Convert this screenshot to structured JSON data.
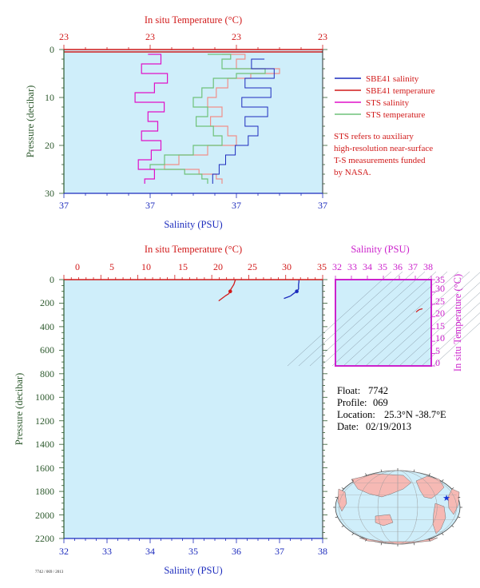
{
  "colors": {
    "plot_bg": "#cfeefa",
    "salinity": "#1c2bbd",
    "temperature": "#d11a1a",
    "sts_salinity": "#e010c8",
    "sts_temperature": "#6fc27a",
    "sts_temperature_red": "#f0908a",
    "ts_axis": "#cc22cc",
    "pressure_axis": "#2e5a2e",
    "land": "#f6b9b4",
    "ocean": "#cfeefa",
    "float_marker": "#1633d6"
  },
  "top_chart": {
    "top_axis_title": "In situ Temperature (°C)",
    "top_tick_labels": [
      "23",
      "23",
      "23",
      "23"
    ],
    "bottom_axis_title": "Salinity (PSU)",
    "bottom_tick_labels": [
      "37",
      "37",
      "37",
      "37"
    ],
    "left_axis_title": "Pressure (decibar)",
    "left_tick_labels": [
      "0",
      "10",
      "20",
      "30"
    ]
  },
  "legend": {
    "items": [
      {
        "label": "SBE41 salinity",
        "color": "#1c2bbd"
      },
      {
        "label": "SBE41 temperature",
        "color": "#d11a1a"
      },
      {
        "label": "STS salinity",
        "color": "#e010c8"
      },
      {
        "label": "STS temperature",
        "color": "#6fc27a"
      }
    ],
    "note_lines": [
      "STS refers to auxiliary",
      "high-resolution near-surface",
      "T-S measurements funded",
      "by NASA."
    ]
  },
  "bottom_chart": {
    "top_axis_title": "In situ Temperature (°C)",
    "top_tick_labels": [
      "0",
      "5",
      "10",
      "15",
      "20",
      "25",
      "30",
      "35"
    ],
    "bottom_axis_title": "Salinity (PSU)",
    "bottom_tick_labels": [
      "32",
      "33",
      "34",
      "35",
      "36",
      "37",
      "38"
    ],
    "left_axis_title": "Pressure (decibar)",
    "left_tick_labels": [
      "0",
      "200",
      "400",
      "600",
      "800",
      "1000",
      "1200",
      "1400",
      "1600",
      "1800",
      "2000",
      "2200"
    ]
  },
  "ts_diagram": {
    "top_axis_title": "Salinity (PSU)",
    "top_tick_labels": [
      "32",
      "33",
      "34",
      "35",
      "36",
      "37",
      "38"
    ],
    "right_axis_title": "In situ Temperature (°C)",
    "right_tick_labels": [
      "0",
      "5",
      "10",
      "15",
      "20",
      "25",
      "30",
      "35"
    ]
  },
  "float_info": {
    "float_label": "Float:",
    "float_value": "7742",
    "profile_label": "Profile:",
    "profile_value": "069",
    "location_label": "Location:",
    "location_value": "25.3°N  -38.7°E",
    "date_label": "Date:",
    "date_value": "02/19/2013"
  },
  "footer_text": "7742 / 069 / 2013",
  "chart_data": [
    {
      "type": "line",
      "title": "",
      "xlabel": "Salinity (PSU) / In situ Temperature (°C)",
      "ylabel": "Pressure (decibar)",
      "ylim": [
        30,
        0
      ],
      "y_inverted": true,
      "grid": false,
      "legend_position": "right",
      "series": [
        {
          "name": "SBE41 salinity",
          "color": "#1c2bbd",
          "pressure": [
            2,
            4,
            6,
            8,
            10,
            12,
            14,
            16,
            18,
            20,
            22,
            24,
            26,
            28
          ],
          "value": [
            37.42,
            37.38,
            37.45,
            37.36,
            37.44,
            37.35,
            37.43,
            37.36,
            37.4,
            37.37,
            37.33,
            37.3,
            37.28,
            37.26
          ]
        },
        {
          "name": "SBE41 temperature",
          "color": "#d11a1a",
          "pressure": [
            0.5
          ],
          "value": [
            23.0
          ]
        },
        {
          "name": "STS salinity",
          "color": "#e010c8",
          "pressure": [
            1,
            3,
            5,
            7,
            9,
            11,
            13,
            15,
            17,
            19,
            21,
            23,
            25,
            27,
            28
          ],
          "value": [
            37.06,
            37.1,
            37.04,
            37.12,
            37.08,
            37.02,
            37.11,
            37.06,
            37.09,
            37.04,
            37.1,
            37.07,
            37.03,
            37.08,
            37.05
          ]
        },
        {
          "name": "STS temperature",
          "color": "#6fc27a",
          "pressure": [
            1,
            2,
            4,
            5,
            6,
            8,
            10,
            12,
            14,
            16,
            18,
            20,
            22,
            24,
            25,
            26,
            27,
            28
          ],
          "value": [
            23.2,
            23.28,
            23.25,
            23.4,
            23.3,
            23.22,
            23.18,
            23.15,
            23.2,
            23.16,
            23.22,
            23.25,
            23.15,
            23.05,
            23.0,
            23.12,
            23.18,
            23.2
          ]
        }
      ]
    },
    {
      "type": "line",
      "title": "",
      "xlabel": "Salinity (PSU)",
      "x2label": "In situ Temperature (°C)",
      "ylabel": "Pressure (decibar)",
      "xlim": [
        32,
        38
      ],
      "x2lim": [
        0,
        35
      ],
      "ylim": [
        2200,
        0
      ],
      "y_inverted": true,
      "grid": false,
      "series": [
        {
          "name": "temperature",
          "color": "#d11a1a",
          "x2": [
            23.2,
            23.1,
            23.0,
            22.8,
            22.6,
            22.5,
            22.3,
            21.8
          ],
          "pressure": [
            0,
            20,
            40,
            60,
            80,
            100,
            120,
            140
          ]
        },
        {
          "name": "salinity",
          "color": "#1c2bbd",
          "x": [
            37.45,
            37.45,
            37.44,
            37.44,
            37.44,
            37.4,
            37.32,
            37.25
          ],
          "pressure": [
            0,
            20,
            40,
            60,
            80,
            100,
            120,
            140
          ]
        }
      ]
    },
    {
      "type": "scatter",
      "title": "",
      "xlabel": "Salinity (PSU)",
      "ylabel": "In situ Temperature (°C)",
      "xlim": [
        32,
        38
      ],
      "ylim": [
        0,
        35
      ],
      "grid": false,
      "series": [
        {
          "name": "T-S",
          "color": "#d11a1a",
          "x": [
            37.05,
            37.15,
            37.25,
            37.35,
            37.45
          ],
          "y": [
            21.8,
            22.4,
            22.8,
            23.0,
            23.2
          ]
        }
      ]
    }
  ]
}
